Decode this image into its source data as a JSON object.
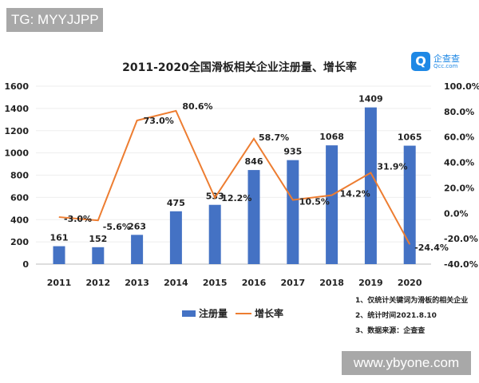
{
  "watermarks": {
    "top_left": "TG: MYYJJPP",
    "bottom_right": "www.ybyone.com"
  },
  "logo": {
    "name": "企查查",
    "domain": "Qcc.com"
  },
  "chart_data": {
    "type": "bar+line",
    "title": "2011-2020全国滑板相关企业注册量、增长率",
    "categories": [
      "2011",
      "2012",
      "2013",
      "2014",
      "2015",
      "2016",
      "2017",
      "2018",
      "2019",
      "2020"
    ],
    "series": [
      {
        "name": "注册量",
        "type": "bar",
        "axis": "left",
        "color": "#4472c4",
        "values": [
          161,
          152,
          263,
          475,
          533,
          846,
          935,
          1068,
          1409,
          1065
        ],
        "labels": [
          "161",
          "152",
          "263",
          "475",
          "533",
          "846",
          "935",
          "1068",
          "1409",
          "1065"
        ]
      },
      {
        "name": "增长率",
        "type": "line",
        "axis": "right",
        "color": "#ed7d31",
        "values": [
          -3.0,
          -5.6,
          73.0,
          80.6,
          12.2,
          58.7,
          10.5,
          14.2,
          31.9,
          -24.4
        ],
        "labels": [
          "-3.0%",
          "-5.6%",
          "73.0%",
          "80.6%",
          "12.2%",
          "58.7%",
          "10.5%",
          "14.2%",
          "31.9%",
          "-24.4%"
        ]
      }
    ],
    "left_axis": {
      "ylim": [
        0,
        1600
      ],
      "ticks": [
        "0",
        "200",
        "400",
        "600",
        "800",
        "1000",
        "1200",
        "1400",
        "1600"
      ]
    },
    "right_axis": {
      "ylim": [
        -40,
        100
      ],
      "unit": "%",
      "ticks": [
        "-40.0%",
        "-20.0%",
        "0.0%",
        "20.0%",
        "40.0%",
        "60.0%",
        "80.0%",
        "100.0%"
      ]
    },
    "grid": true,
    "legend": "bottom",
    "notes": [
      "1、仅统计关键词为滑板的相关企业",
      "2、统计时间2021.8.10",
      "3、数据来源：企查查"
    ]
  }
}
